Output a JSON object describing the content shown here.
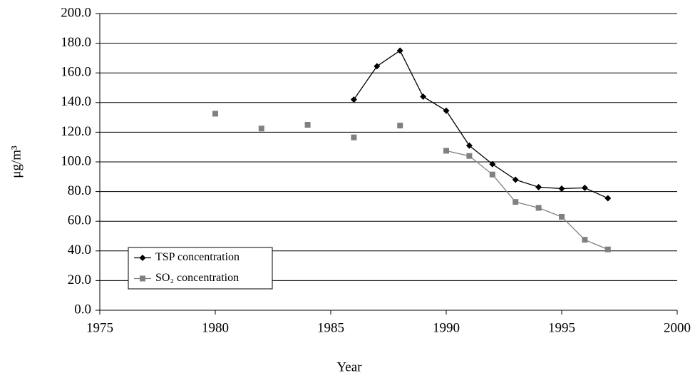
{
  "chart_data": {
    "type": "line",
    "xlabel": "Year",
    "ylabel": "μg/m³",
    "xlim": [
      1975,
      2000
    ],
    "xticks": [
      1975,
      1980,
      1985,
      1990,
      1995,
      2000
    ],
    "ylim": [
      0,
      200
    ],
    "yticks": [
      {
        "value": 0,
        "label": "0.0"
      },
      {
        "value": 20,
        "label": "20.0"
      },
      {
        "value": 40,
        "label": "40.0"
      },
      {
        "value": 60,
        "label": "60.0"
      },
      {
        "value": 80,
        "label": "80.0"
      },
      {
        "value": 100,
        "label": "100.0"
      },
      {
        "value": 120,
        "label": "120.0"
      },
      {
        "value": 140,
        "label": "140.0"
      },
      {
        "value": 160,
        "label": "160.0"
      },
      {
        "value": 180,
        "label": "180.0"
      },
      {
        "value": 200,
        "label": "200.0"
      }
    ],
    "grid": true,
    "legend": "lower left",
    "series": [
      {
        "name": "TSP concentration",
        "color": "#000000",
        "marker": "diamond",
        "x": [
          1986,
          1987,
          1988,
          1989,
          1990,
          1991,
          1992,
          1993,
          1994,
          1995,
          1996,
          1997
        ],
        "values": [
          142,
          164.5,
          175,
          144,
          134.5,
          111,
          98.5,
          88,
          83,
          82,
          82.5,
          75.5
        ]
      },
      {
        "name": "SO₂ concentration",
        "color": "#808080",
        "marker": "square",
        "x": [
          1980,
          1981,
          1982,
          1983,
          1984,
          1985,
          1986,
          1987,
          1988,
          1989,
          1990,
          1991,
          1992,
          1993,
          1994,
          1995,
          1996,
          1997
        ],
        "values": [
          132.5,
          null,
          122.5,
          null,
          125,
          null,
          116.5,
          null,
          124.5,
          null,
          107.5,
          104,
          91.5,
          73,
          69,
          63,
          47.5,
          41
        ]
      }
    ]
  }
}
